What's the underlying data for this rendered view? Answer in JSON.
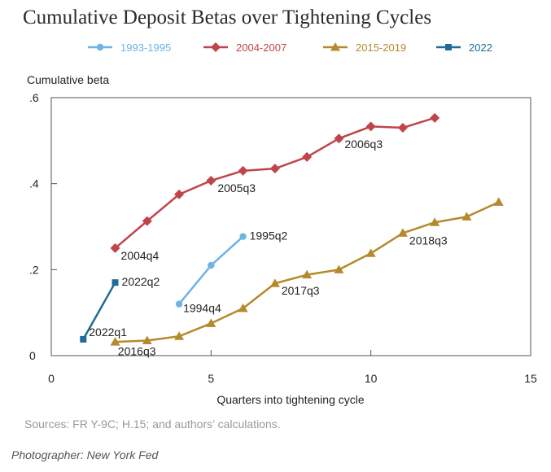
{
  "title": "Cumulative Deposit Betas over Tightening Cycles",
  "source": "Sources: FR Y-9C; H.15; and authors’ calculations.",
  "credit": "Photographer: New York Fed",
  "chart_data": {
    "type": "line",
    "title": "Cumulative Deposit Betas over Tightening Cycles",
    "xlabel": "Quarters into tightening cycle",
    "ylabel": "Cumulative beta",
    "xlim": [
      0,
      15
    ],
    "ylim": [
      0,
      0.6
    ],
    "xticks": [
      0,
      5,
      10,
      15
    ],
    "xtick_labels": [
      "0",
      "5",
      "10",
      "15"
    ],
    "yticks": [
      0,
      0.2,
      0.4,
      0.6
    ],
    "ytick_labels": [
      "0",
      ".2",
      ".4",
      ".6"
    ],
    "grid": false,
    "legend_position": "top",
    "series": [
      {
        "name": "1993-1995",
        "color": "#6cb4e4",
        "marker": "circle",
        "x": [
          4,
          5,
          6
        ],
        "y": [
          0.12,
          0.21,
          0.277
        ],
        "annotations": [
          {
            "x": 4,
            "y": 0.12,
            "text": "1994q4"
          },
          {
            "x": 6,
            "y": 0.277,
            "text": "1995q2"
          }
        ]
      },
      {
        "name": "2004-2007",
        "color": "#c0454a",
        "marker": "diamond",
        "x": [
          2,
          3,
          4,
          5,
          6,
          7,
          8,
          9,
          10,
          11,
          12
        ],
        "y": [
          0.25,
          0.313,
          0.375,
          0.407,
          0.43,
          0.435,
          0.462,
          0.505,
          0.533,
          0.53,
          0.553
        ],
        "annotations": [
          {
            "x": 2,
            "y": 0.25,
            "text": "2004q4"
          },
          {
            "x": 5,
            "y": 0.407,
            "text": "2005q3"
          },
          {
            "x": 9,
            "y": 0.505,
            "text": "2006q3"
          }
        ]
      },
      {
        "name": "2015-2019",
        "color": "#b58a2c",
        "marker": "triangle",
        "x": [
          2,
          3,
          4,
          5,
          6,
          7,
          8,
          9,
          10,
          11,
          12,
          13,
          14
        ],
        "y": [
          0.032,
          0.035,
          0.045,
          0.075,
          0.11,
          0.168,
          0.188,
          0.2,
          0.238,
          0.285,
          0.31,
          0.323,
          0.357
        ],
        "annotations": [
          {
            "x": 3,
            "y": 0.035,
            "text": "2016q3"
          },
          {
            "x": 7,
            "y": 0.168,
            "text": "2017q3"
          },
          {
            "x": 11,
            "y": 0.285,
            "text": "2018q3"
          }
        ]
      },
      {
        "name": "2022",
        "color": "#1f6c96",
        "marker": "square",
        "x": [
          1,
          2
        ],
        "y": [
          0.038,
          0.17
        ],
        "annotations": [
          {
            "x": 1,
            "y": 0.038,
            "text": "2022q1"
          },
          {
            "x": 2,
            "y": 0.17,
            "text": "2022q2"
          }
        ]
      }
    ]
  }
}
